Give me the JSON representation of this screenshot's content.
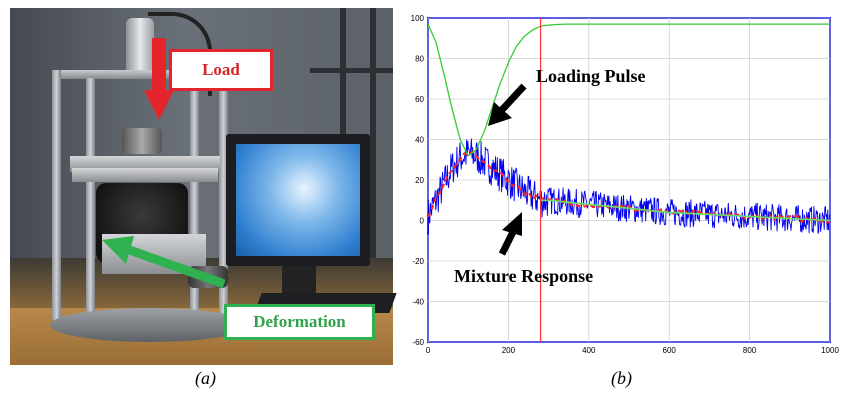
{
  "panel_a": {
    "callouts": {
      "load": "Load",
      "deformation": "Deformation"
    },
    "caption": "(a)"
  },
  "panel_b": {
    "caption": "(b)",
    "annotations": {
      "loading_pulse": "Loading Pulse",
      "mixture_response": "Mixture Response"
    }
  },
  "chart_data": {
    "type": "line",
    "xlim": [
      0,
      1000
    ],
    "ylim": [
      -60,
      100
    ],
    "x_ticks": [
      "0",
      "200",
      "400",
      "600",
      "800",
      "1000"
    ],
    "y_ticks": [
      "100",
      "80",
      "60",
      "40",
      "20",
      "0",
      "-20",
      "-40",
      "-60"
    ],
    "grid": true,
    "vertical_marker_x": 280,
    "colors": {
      "loading_pulse": "#33cc33",
      "noisy_response": "#0000ee",
      "smoothed_response": "#ff2222",
      "fitted_response": "#66dd66",
      "marker": "#ff3333",
      "grid": "#cfcfcf"
    },
    "series": [
      {
        "x": [
          0,
          20,
          40,
          60,
          80,
          100,
          120,
          140,
          160,
          180,
          200,
          220,
          240,
          260,
          280,
          300,
          320,
          340,
          360,
          380,
          400,
          450,
          500,
          600,
          700,
          800,
          900,
          1000
        ],
        "values": [
          97,
          88,
          72,
          55,
          40,
          32,
          35,
          44,
          56,
          68,
          78,
          86,
          91,
          94,
          96,
          96.5,
          96.8,
          97,
          97,
          97,
          97,
          97,
          97,
          97,
          97,
          97,
          97,
          97
        ]
      },
      {
        "x": [
          0,
          20,
          40,
          60,
          80,
          100,
          120,
          140,
          160,
          180,
          200,
          220,
          240,
          260,
          280,
          300,
          350,
          400,
          450,
          500,
          600,
          700,
          800,
          900,
          1000
        ],
        "values": [
          2,
          10,
          18,
          26,
          31,
          33,
          32,
          29,
          26,
          23,
          20,
          17,
          14,
          12,
          10,
          10,
          9,
          8,
          7,
          6,
          4,
          3,
          2,
          1,
          0
        ]
      }
    ]
  }
}
